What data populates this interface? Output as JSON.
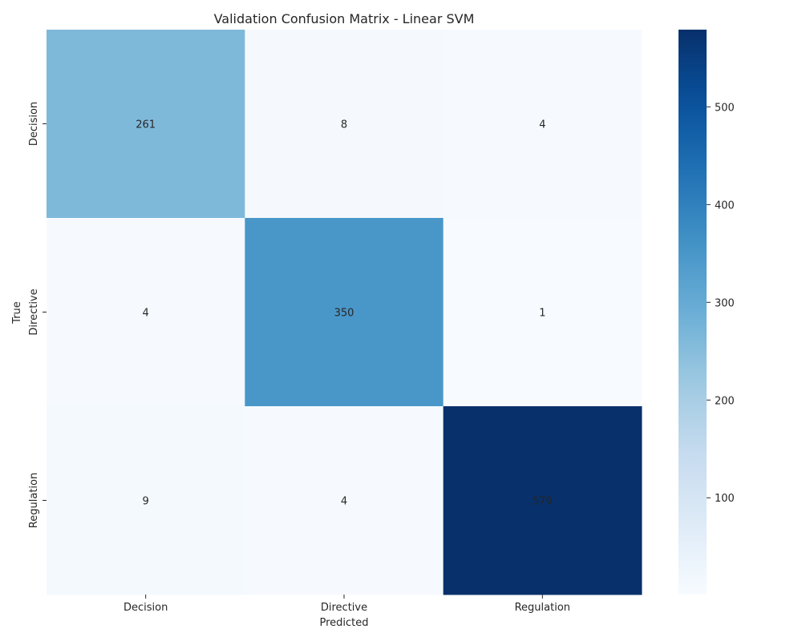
{
  "chart_data": {
    "type": "heatmap",
    "title": "Validation Confusion Matrix - Linear SVM",
    "xlabel": "Predicted",
    "ylabel": "True",
    "x_categories": [
      "Decision",
      "Directive",
      "Regulation"
    ],
    "y_categories": [
      "Decision",
      "Directive",
      "Regulation"
    ],
    "values": [
      [
        261,
        8,
        4
      ],
      [
        4,
        350,
        1
      ],
      [
        9,
        4,
        579
      ]
    ],
    "colormap": "Blues",
    "color_range": [
      1,
      579
    ],
    "colorbar_ticks": [
      100,
      200,
      300,
      400,
      500
    ],
    "annotations": true,
    "grid": false
  }
}
